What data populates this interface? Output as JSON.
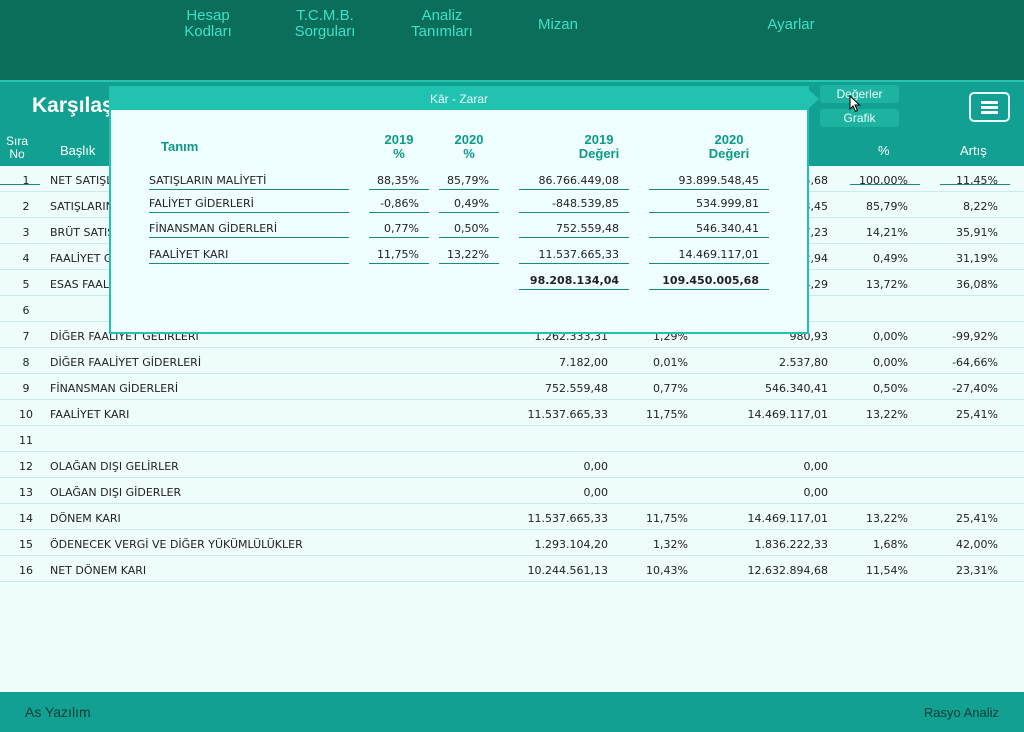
{
  "nav": [
    {
      "line1": "Hesap",
      "line2": "Kodları"
    },
    {
      "line1": "T.C.M.B.",
      "line2": "Sorguları"
    },
    {
      "line1": "Analiz",
      "line2": "Tanımları"
    },
    {
      "line1": "Mizan",
      "line2": ""
    },
    {
      "line1": "Ayarlar",
      "line2": ""
    }
  ],
  "page_title": "Karşılaş",
  "tabs": {
    "values": "Değerler",
    "chart": "Grafik"
  },
  "headers": {
    "sira": "Sıra",
    "no": "No",
    "baslik": "Başlık",
    "percent": "%",
    "artis": "Artış"
  },
  "rows": [
    {
      "no": "1",
      "title": "NET SATIŞLA",
      "v2019": "",
      "p2019": "",
      "v2020": "5,68",
      "p2020": "100,00%",
      "artis": "11,45%"
    },
    {
      "no": "2",
      "title": "SATIŞLARIN",
      "v2019": "",
      "p2019": "",
      "v2020": "3,45",
      "p2020": "85,79%",
      "artis": "8,22%"
    },
    {
      "no": "3",
      "title": "BRÜT SATIŞ",
      "v2019": "",
      "p2019": "",
      "v2020": "7,23",
      "p2020": "14,21%",
      "artis": "35,91%"
    },
    {
      "no": "4",
      "title": "FAALİYET G",
      "v2019": "",
      "p2019": "",
      "v2020": "2,94",
      "p2020": "0,49%",
      "artis": "31,19%"
    },
    {
      "no": "5",
      "title": "ESAS FAALİ",
      "v2019": "",
      "p2019": "",
      "v2020": "4,29",
      "p2020": "13,72%",
      "artis": "36,08%"
    },
    {
      "no": "6",
      "title": "",
      "v2019": "",
      "p2019": "",
      "v2020": "",
      "p2020": "",
      "artis": ""
    },
    {
      "no": "7",
      "title": "DİĞER FAALİYET GELİRLERİ",
      "v2019": "1.262.333,31",
      "p2019": "1,29%",
      "v2020": "980,93",
      "p2020": "0,00%",
      "artis": "-99,92%"
    },
    {
      "no": "8",
      "title": "DİĞER FAALİYET GİDERLERİ",
      "v2019": "7.182,00",
      "p2019": "0,01%",
      "v2020": "2.537,80",
      "p2020": "0,00%",
      "artis": "-64,66%"
    },
    {
      "no": "9",
      "title": "FİNANSMAN GİDERLERİ",
      "v2019": "752.559,48",
      "p2019": "0,77%",
      "v2020": "546.340,41",
      "p2020": "0,50%",
      "artis": "-27,40%"
    },
    {
      "no": "10",
      "title": "FAALİYET KARI",
      "v2019": "11.537.665,33",
      "p2019": "11,75%",
      "v2020": "14.469.117,01",
      "p2020": "13,22%",
      "artis": "25,41%"
    },
    {
      "no": "11",
      "title": "",
      "v2019": "",
      "p2019": "",
      "v2020": "",
      "p2020": "",
      "artis": ""
    },
    {
      "no": "12",
      "title": "OLAĞAN DIŞI  GELİRLER",
      "v2019": "0,00",
      "p2019": "",
      "v2020": "0,00",
      "p2020": "",
      "artis": ""
    },
    {
      "no": "13",
      "title": "OLAĞAN DIŞI GİDERLER",
      "v2019": "0,00",
      "p2019": "",
      "v2020": "0,00",
      "p2020": "",
      "artis": ""
    },
    {
      "no": "14",
      "title": "DÖNEM KARI",
      "v2019": "11.537.665,33",
      "p2019": "11,75%",
      "v2020": "14.469.117,01",
      "p2020": "13,22%",
      "artis": "25,41%"
    },
    {
      "no": "15",
      "title": "ÖDENECEK VERGİ VE DİĞER YÜKÜMLÜLÜKLER",
      "v2019": "1.293.104,20",
      "p2019": "1,32%",
      "v2020": "1.836.222,33",
      "p2020": "1,68%",
      "artis": "42,00%"
    },
    {
      "no": "16",
      "title": "NET DÖNEM KARI",
      "v2019": "10.244.561,13",
      "p2019": "10,43%",
      "v2020": "12.632.894,68",
      "p2020": "11,54%",
      "artis": "23,31%"
    }
  ],
  "popup": {
    "title": "Kâr - Zarar",
    "headers": {
      "tanim": "Tanım",
      "p2019_year": "2019",
      "p2019_unit": "%",
      "p2020_year": "2020",
      "p2020_unit": "%",
      "v2019_year": "2019",
      "v2019_unit": "Değeri",
      "v2020_year": "2020",
      "v2020_unit": "Değeri"
    },
    "rows": [
      {
        "name": "SATIŞLARIN MALİYETİ",
        "p2019": "88,35%",
        "p2020": "85,79%",
        "v2019": "86.766.449,08",
        "v2020": "93.899.548,45"
      },
      {
        "name": "FALİYET GİDERLERİ",
        "p2019": "-0,86%",
        "p2020": "0,49%",
        "v2019": "-848.539,85",
        "v2020": "534.999,81"
      },
      {
        "name": "FİNANSMAN GİDERLERİ",
        "p2019": "0,77%",
        "p2020": "0,50%",
        "v2019": "752.559,48",
        "v2020": "546.340,41"
      },
      {
        "name": "FAALİYET KARI",
        "p2019": "11,75%",
        "p2020": "13,22%",
        "v2019": "11.537.665,33",
        "v2020": "14.469.117,01"
      }
    ],
    "totals": {
      "v2019": "98.208.134,04",
      "v2020": "109.450.005,68"
    }
  },
  "footer": {
    "left": "As Yazılım",
    "right": "Rasyo Analiz"
  },
  "colors": {
    "nav_bg": "#0b6e5a",
    "accent": "#11a091",
    "popup_border": "#22c2b0",
    "text_accent": "#3fe0c4"
  }
}
